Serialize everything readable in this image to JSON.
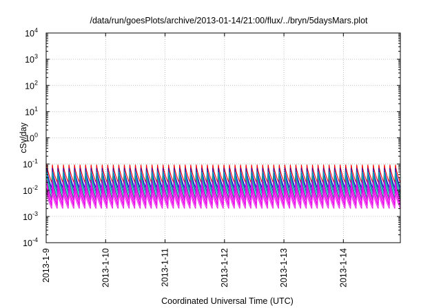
{
  "chart_data": {
    "type": "line",
    "title": "/data/run/goesPlots/archive/2013-01-14/21:00/flux/../bryn/5daysMars.plot",
    "xlabel": "Coordinated Universal Time (UTC)",
    "ylabel": "cSv/day",
    "yscale": "log",
    "ylim": [
      0.0001,
      10000
    ],
    "y_ticks": [
      {
        "base": "10",
        "exp": "-4",
        "value": 0.0001
      },
      {
        "base": "10",
        "exp": "-3",
        "value": 0.001
      },
      {
        "base": "10",
        "exp": "-2",
        "value": 0.01
      },
      {
        "base": "10",
        "exp": "-1",
        "value": 0.1
      },
      {
        "base": "10",
        "exp": "0",
        "value": 1
      },
      {
        "base": "10",
        "exp": "1",
        "value": 10
      },
      {
        "base": "10",
        "exp": "2",
        "value": 100
      },
      {
        "base": "10",
        "exp": "3",
        "value": 1000
      },
      {
        "base": "10",
        "exp": "4",
        "value": 10000
      }
    ],
    "x_ticks": [
      "2013-1-9",
      "2013-1-10",
      "2013-1-11",
      "2013-1-12",
      "2013-1-13",
      "2013-1-14"
    ],
    "xlim": [
      "2013-01-09T00:00",
      "2013-01-14T23:00"
    ],
    "grid": true,
    "legend": "none",
    "pattern": {
      "description_free": true,
      "cycles_per_day": 10.8,
      "peak_values": [
        0.09,
        0.06,
        0.05,
        0.04,
        0.03,
        0.025,
        0.018,
        0.012,
        0.008
      ],
      "trough_values": [
        0.02,
        0.012,
        0.008,
        0.006,
        0.005,
        0.004,
        0.003,
        0.0025,
        0.002
      ]
    },
    "series": [
      {
        "color": "#ff0000",
        "peak": 0.095,
        "trough": 0.02
      },
      {
        "color": "#0000cc",
        "peak": 0.07,
        "trough": 0.012
      },
      {
        "color": "#4444aa",
        "peak": 0.06,
        "trough": 0.009
      },
      {
        "color": "#00bbbb",
        "peak": 0.05,
        "trough": 0.007
      },
      {
        "color": "#00aa88",
        "peak": 0.035,
        "trough": 0.005
      },
      {
        "color": "#cc00cc",
        "peak": 0.025,
        "trough": 0.004
      },
      {
        "color": "#ff00ff",
        "peak": 0.018,
        "trough": 0.003
      },
      {
        "color": "#dd00dd",
        "peak": 0.012,
        "trough": 0.0025
      },
      {
        "color": "#ee22ee",
        "peak": 0.008,
        "trough": 0.002
      }
    ]
  }
}
